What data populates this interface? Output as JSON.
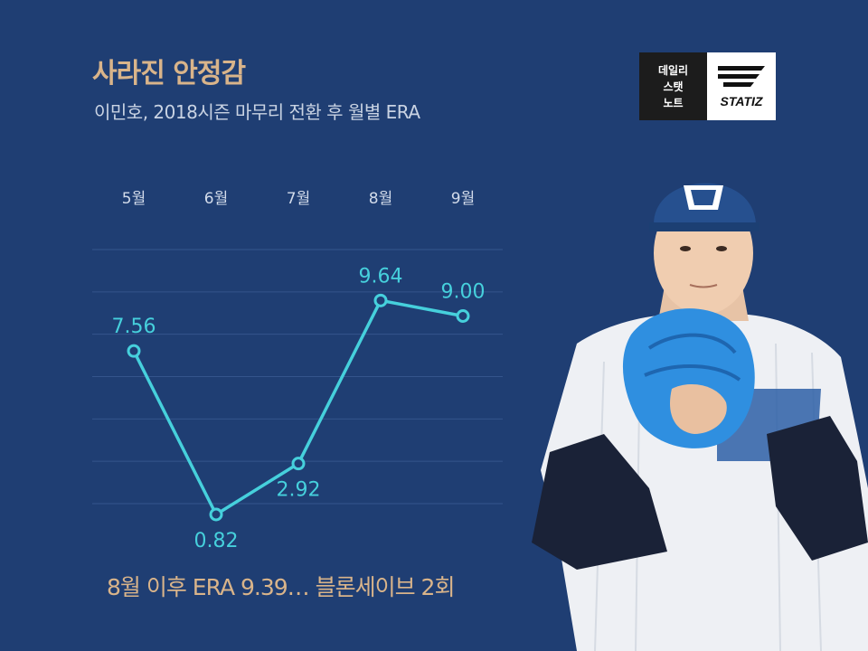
{
  "header": {
    "title": "사라진 안정감",
    "subtitle": "이민호, 2018시즌 마무리 전환 후 월별 ERA"
  },
  "logo": {
    "lines": [
      "데일리",
      "스탯",
      "노트"
    ],
    "brand": "STATIZ"
  },
  "footer": {
    "note": "8월 이후 ERA 9.39… 블론세이브 2회"
  },
  "colors": {
    "background": "#1f3e73",
    "line": "#46d0dc",
    "title": "#d9b48a",
    "grid": "#34558c"
  },
  "chart_data": {
    "type": "line",
    "categories": [
      "5월",
      "6월",
      "7월",
      "8월",
      "9월"
    ],
    "series": [
      {
        "values": [
          7.56,
          0.82,
          2.92,
          9.64,
          9.0
        ]
      }
    ],
    "data_labels": [
      "7.56",
      "0.82",
      "2.92",
      "9.64",
      "9.00"
    ],
    "ylim": [
      0,
      12
    ],
    "grid": true
  }
}
